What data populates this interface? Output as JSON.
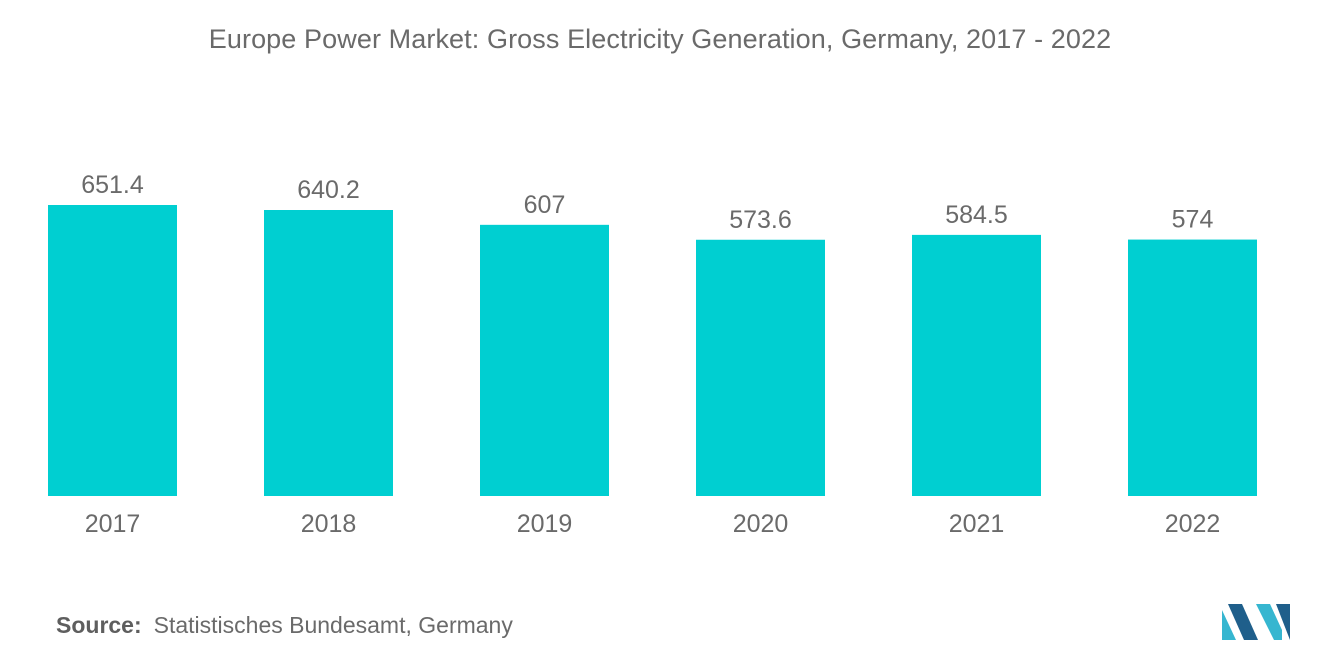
{
  "chart_data": {
    "type": "bar",
    "title": "Europe Power Market: Gross Electricity Generation, Germany, 2017 - 2022",
    "xlabel": "",
    "ylabel": "",
    "categories": [
      "2017",
      "2018",
      "2019",
      "2020",
      "2021",
      "2022"
    ],
    "values": [
      651.4,
      640.2,
      607,
      573.6,
      584.5,
      574
    ],
    "value_labels": [
      "651.4",
      "640.2",
      "607",
      "573.6",
      "584.5",
      "574"
    ],
    "ylim": [
      0,
      651.4
    ],
    "grid": false,
    "legend": "none",
    "bar_color": "#00cfd1"
  },
  "source": {
    "label": "Source:",
    "text": "Statistisches Bundesamt, Germany"
  },
  "colors": {
    "bar": "#00cfd1",
    "text": "#6a6a6a",
    "logo_dark": "#1f5f8b",
    "logo_light": "#36b6d0"
  },
  "logo": {
    "icon": "mordor-intelligence-logo-icon"
  }
}
